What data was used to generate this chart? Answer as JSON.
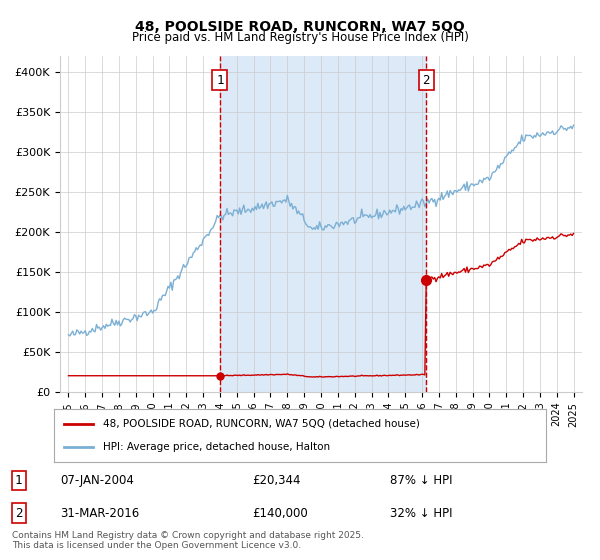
{
  "title_line1": "48, POOLSIDE ROAD, RUNCORN, WA7 5QQ",
  "title_line2": "Price paid vs. HM Land Registry's House Price Index (HPI)",
  "legend_label_red": "48, POOLSIDE ROAD, RUNCORN, WA7 5QQ (detached house)",
  "legend_label_blue": "HPI: Average price, detached house, Halton",
  "annotation1_label": "1",
  "annotation1_date": "07-JAN-2004",
  "annotation1_price": "£20,344",
  "annotation1_hpi": "87% ↓ HPI",
  "annotation2_label": "2",
  "annotation2_date": "31-MAR-2016",
  "annotation2_price": "£140,000",
  "annotation2_hpi": "32% ↓ HPI",
  "footnote": "Contains HM Land Registry data © Crown copyright and database right 2025.\nThis data is licensed under the Open Government Licence v3.0.",
  "background_color": "#ffffff",
  "shade_color": "#dce9f7",
  "grid_color": "#cccccc",
  "red_color": "#cc0000",
  "blue_color": "#7bafd4",
  "sale1_year": 2004.03,
  "sale1_price": 20344,
  "sale2_year": 2016.25,
  "sale2_price": 140000
}
